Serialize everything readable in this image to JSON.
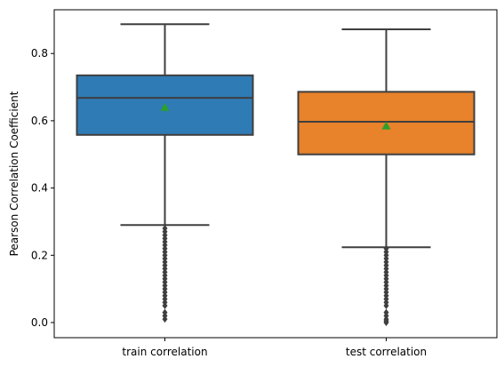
{
  "chart_data": {
    "type": "box",
    "xlabel": "",
    "ylabel": "Pearson Correlation Coefficient",
    "ylim": [
      -0.045,
      0.93
    ],
    "yticks": [
      0.0,
      0.2,
      0.4,
      0.6,
      0.8
    ],
    "ytick_labels": [
      "0.0",
      "0.2",
      "0.4",
      "0.6",
      "0.8"
    ],
    "categories": [
      "train correlation",
      "test correlation"
    ],
    "series": [
      {
        "name": "train correlation",
        "color": "#2f7bb5",
        "whisker_low": 0.29,
        "q1": 0.558,
        "median": 0.668,
        "q3": 0.735,
        "whisker_high": 0.887,
        "mean": 0.64,
        "outliers": [
          0.01,
          0.02,
          0.03,
          0.05,
          0.06,
          0.07,
          0.08,
          0.09,
          0.1,
          0.11,
          0.12,
          0.13,
          0.14,
          0.15,
          0.16,
          0.17,
          0.18,
          0.19,
          0.2,
          0.21,
          0.22,
          0.23,
          0.24,
          0.25,
          0.26,
          0.27,
          0.28
        ]
      },
      {
        "name": "test correlation",
        "color": "#e8822b",
        "whisker_low": 0.224,
        "q1": 0.5,
        "median": 0.597,
        "q3": 0.686,
        "whisker_high": 0.872,
        "mean": 0.585,
        "outliers": [
          0.0,
          0.005,
          0.01,
          0.02,
          0.03,
          0.05,
          0.06,
          0.07,
          0.08,
          0.09,
          0.1,
          0.11,
          0.12,
          0.13,
          0.14,
          0.15,
          0.16,
          0.17,
          0.18,
          0.19,
          0.2,
          0.21,
          0.22
        ]
      }
    ],
    "box_line_color": "#3f3f3f",
    "mean_marker_color": "#2ca02c",
    "outlier_color": "#3f3f3f",
    "grid": false,
    "legend": "none"
  }
}
